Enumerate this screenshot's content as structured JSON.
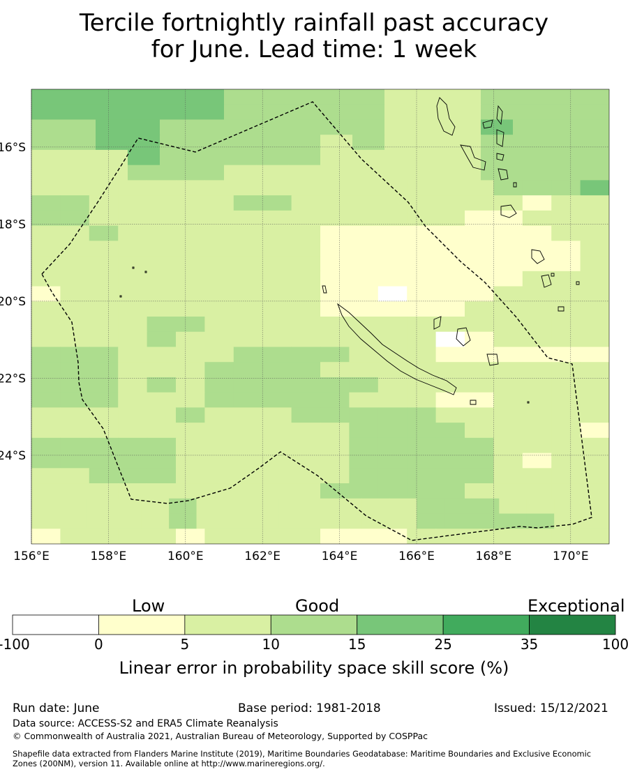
{
  "title": {
    "line1": "Tercile fortnightly rainfall past accuracy",
    "line2": "for June. Lead time: 1 week"
  },
  "map": {
    "lon_ticks": [
      "156°E",
      "158°E",
      "160°E",
      "162°E",
      "164°E",
      "166°E",
      "168°E",
      "170°E"
    ],
    "lat_ticks": [
      "16°S",
      "18°S",
      "20°S",
      "22°S",
      "24°S"
    ],
    "grid": [
      "CCCCCCBBBBBAAABBBB",
      "CCCCCCBBBBBAAABBBB",
      "BBCCBBBBBBBAAACBBB",
      "BBCCBBBBBABAAABBBB",
      "AAACBBBBBAAAAABBBB",
      "AAABBBAAAAAAAABBBB",
      "AAAAAAAAAAAAAAAABBBC",
      "BBAAAAABBAAAAAAAA0AA",
      "BBAAAAAAAAAAAAA00AAA",
      "AABAAAAAAA00000000AA",
      "AAAAAAAAAA000000000A",
      "AAAAAAAAAA000000000A",
      "AAAAAAAAAA0000000AAA",
      "0AAAAAAAAA00W000AAAA",
      "AAAAAAAAAA00000AAAAA",
      "AAAABBAAAAAAAAAAAAAA",
      "AAAABAAAAAAAAAW0AAAA",
      "BBBAAAABBBBAAA000000",
      "BBBAAABBBBAAAAAAAAAA",
      "BBBABABBBBBBAAAAAAAA",
      "BBBAAABBBBBAAA00AAAA",
      "AAAAABAAABBBBBAAAAAA",
      "AAAAAAAAAAABBBBAAAA0",
      "BBBBBAAAAAABBBBBAAAA",
      "BBBBBAAAAAABBBBBA0AA",
      "AABBBAAAAAABBBBBAAAA",
      "AAAAAAAAAABBBBBAAAAA",
      "AAAAABAAAAAAAABBBAAAA",
      "AAAAABAAAAAAAABBBBBAA",
      "0AAAA0AAAA000AAAAAAA"
    ],
    "palette_key": {
      "W": "#ffffff",
      "0": "#ffffcc",
      "A": "#d9f0a3",
      "B": "#addd8e",
      "C": "#78c679",
      "D": "#41ab5d",
      "E": "#238443"
    }
  },
  "colorbar": {
    "category_labels": [
      "Low",
      "Good",
      "Exceptional"
    ],
    "colors": [
      "#ffffff",
      "#ffffcc",
      "#d9f0a3",
      "#addd8e",
      "#78c679",
      "#41ab5d",
      "#238443"
    ],
    "ticks": [
      "-100",
      "0",
      "5",
      "10",
      "15",
      "25",
      "35",
      "100"
    ],
    "title": "Linear error in probability space skill score (%)"
  },
  "footer": {
    "run_date": "Run date: June",
    "base_period": "Base period: 1981-2018",
    "issued": "Issued: 15/12/2021",
    "data_source": "Data source: ACCESS-S2 and ERA5 Climate Reanalysis",
    "copyright": "© Commonwealth of Australia 2021, Australian Bureau of Meteorology, Supported by COSPPac",
    "shapefile_line1": "Shapefile data extracted from Flanders Marine Institute (2019), Maritime Boundaries Geodatabase: Maritime Boundaries and Exclusive Economic",
    "shapefile_line2": "Zones (200NM), version 11. Available online at http://www.marineregions.org/."
  }
}
